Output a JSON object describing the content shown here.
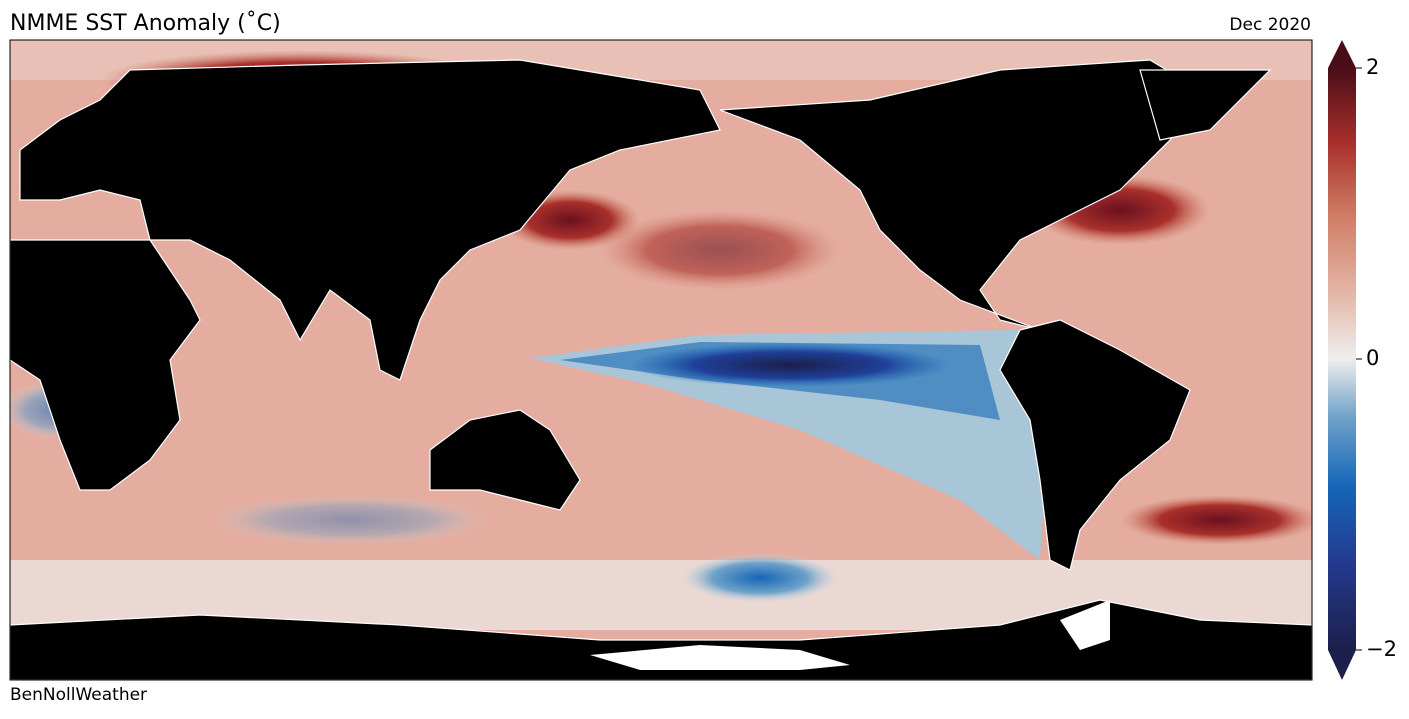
{
  "header": {
    "title": "NMME SST Anomaly (˚C)",
    "date": "Dec 2020"
  },
  "footer": {
    "credit": "BenNollWeather"
  },
  "colorbar": {
    "lim": [
      -2,
      2
    ],
    "ticks": [
      {
        "value": 2,
        "label": "2"
      },
      {
        "value": 0,
        "label": "0"
      },
      {
        "value": -2,
        "label": "−2"
      }
    ]
  }
}
